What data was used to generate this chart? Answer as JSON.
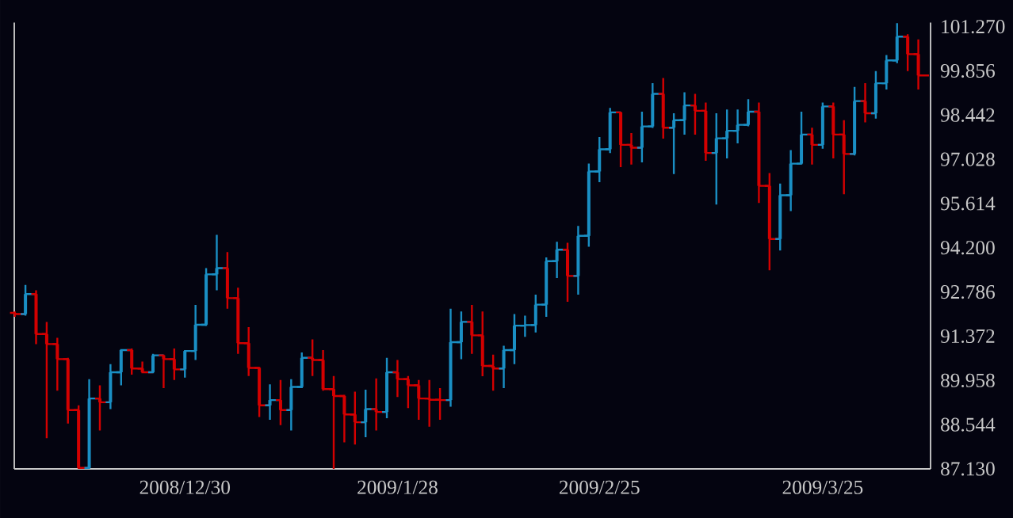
{
  "chart_data": {
    "type": "candlestick",
    "categories": [
      null,
      null,
      null,
      null,
      null,
      null,
      null,
      null,
      null,
      null,
      null,
      null,
      null,
      null,
      null,
      null,
      "2008/12/30",
      null,
      null,
      null,
      null,
      null,
      null,
      null,
      null,
      null,
      null,
      null,
      null,
      null,
      null,
      null,
      null,
      null,
      null,
      null,
      "2009/1/28",
      null,
      null,
      null,
      null,
      null,
      null,
      null,
      null,
      null,
      null,
      null,
      null,
      null,
      null,
      null,
      null,
      null,
      null,
      "2009/2/25",
      null,
      null,
      null,
      null,
      null,
      null,
      null,
      null,
      null,
      null,
      null,
      null,
      null,
      null,
      null,
      null,
      null,
      null,
      null,
      null,
      "2009/3/25",
      null,
      null,
      null,
      null,
      null,
      null,
      null,
      null,
      null
    ],
    "ohlc": [
      [
        92.12,
        92.16,
        91.99,
        92.08
      ],
      [
        92.08,
        93.01,
        92.03,
        92.72
      ],
      [
        92.72,
        92.84,
        91.12,
        91.44
      ],
      [
        91.44,
        91.83,
        88.11,
        91.12
      ],
      [
        91.12,
        91.32,
        89.63,
        90.64
      ],
      [
        90.64,
        90.68,
        88.58,
        89.01
      ],
      [
        89.01,
        89.16,
        87.13,
        87.16
      ],
      [
        87.16,
        90.0,
        87.13,
        89.38
      ],
      [
        89.38,
        89.8,
        88.36,
        89.26
      ],
      [
        89.26,
        90.48,
        89.04,
        90.22
      ],
      [
        90.22,
        90.95,
        89.8,
        90.93
      ],
      [
        90.93,
        90.98,
        90.14,
        90.34
      ],
      [
        90.34,
        90.56,
        90.22,
        90.22
      ],
      [
        90.22,
        90.81,
        90.22,
        90.76
      ],
      [
        90.76,
        90.78,
        89.71,
        90.64
      ],
      [
        90.64,
        90.98,
        89.97,
        90.31
      ],
      [
        90.31,
        90.9,
        90.05,
        90.9
      ],
      [
        90.9,
        92.37,
        90.61,
        91.74
      ],
      [
        91.74,
        93.55,
        91.7,
        93.35
      ],
      [
        93.35,
        94.61,
        92.84,
        93.55
      ],
      [
        93.55,
        94.06,
        92.25,
        92.59
      ],
      [
        92.59,
        92.92,
        90.81,
        91.15
      ],
      [
        91.15,
        91.66,
        90.1,
        90.36
      ],
      [
        90.36,
        90.36,
        88.79,
        89.16
      ],
      [
        89.16,
        89.83,
        88.7,
        89.33
      ],
      [
        89.33,
        89.97,
        88.53,
        89.01
      ],
      [
        89.01,
        90.0,
        88.36,
        89.75
      ],
      [
        89.75,
        90.85,
        89.71,
        90.68
      ],
      [
        90.68,
        91.27,
        90.1,
        90.61
      ],
      [
        90.61,
        90.93,
        89.63,
        89.68
      ],
      [
        89.68,
        90.1,
        87.13,
        89.46
      ],
      [
        89.46,
        89.5,
        87.98,
        88.87
      ],
      [
        88.87,
        89.6,
        87.91,
        88.62
      ],
      [
        88.62,
        89.66,
        88.14,
        89.04
      ],
      [
        89.04,
        90.02,
        88.36,
        88.95
      ],
      [
        88.95,
        90.68,
        88.75,
        90.22
      ],
      [
        90.22,
        90.61,
        89.43,
        90.0
      ],
      [
        90.0,
        90.1,
        89.07,
        89.8
      ],
      [
        89.8,
        89.97,
        88.7,
        89.38
      ],
      [
        89.38,
        89.97,
        88.48,
        89.34
      ],
      [
        89.34,
        89.71,
        88.7,
        89.33
      ],
      [
        89.33,
        92.25,
        89.12,
        91.18
      ],
      [
        91.18,
        92.16,
        90.64,
        91.83
      ],
      [
        91.83,
        92.37,
        90.81,
        91.4
      ],
      [
        91.4,
        92.16,
        90.09,
        90.42
      ],
      [
        90.42,
        90.78,
        89.63,
        90.34
      ],
      [
        90.34,
        91.07,
        89.71,
        90.93
      ],
      [
        90.93,
        92.08,
        90.48,
        91.71
      ],
      [
        91.71,
        92.03,
        91.35,
        91.73
      ],
      [
        91.73,
        92.7,
        91.49,
        92.38
      ],
      [
        92.38,
        93.89,
        91.99,
        93.77
      ],
      [
        93.77,
        94.39,
        93.23,
        94.14
      ],
      [
        94.14,
        94.36,
        92.47,
        93.3
      ],
      [
        93.3,
        94.9,
        92.7,
        94.58
      ],
      [
        94.58,
        96.89,
        94.23,
        96.64
      ],
      [
        96.64,
        97.74,
        96.3,
        97.35
      ],
      [
        97.35,
        98.67,
        97.23,
        98.53
      ],
      [
        98.53,
        98.55,
        96.78,
        97.49
      ],
      [
        97.49,
        97.87,
        96.86,
        97.4
      ],
      [
        97.4,
        98.55,
        96.93,
        98.08
      ],
      [
        98.08,
        99.46,
        98.03,
        99.12
      ],
      [
        99.12,
        99.63,
        97.69,
        98.04
      ],
      [
        98.04,
        98.5,
        96.56,
        98.28
      ],
      [
        98.28,
        99.17,
        97.82,
        98.75
      ],
      [
        98.75,
        99.12,
        97.82,
        98.58
      ],
      [
        98.58,
        98.84,
        96.98,
        97.23
      ],
      [
        97.23,
        98.5,
        95.58,
        97.7
      ],
      [
        97.7,
        98.62,
        97.06,
        97.94
      ],
      [
        97.94,
        98.62,
        97.54,
        98.13
      ],
      [
        98.13,
        98.95,
        98.08,
        98.55
      ],
      [
        98.55,
        98.84,
        95.63,
        96.18
      ],
      [
        96.18,
        96.59,
        93.48,
        94.48
      ],
      [
        94.48,
        96.25,
        94.11,
        95.88
      ],
      [
        95.88,
        97.32,
        95.37,
        96.89
      ],
      [
        96.89,
        98.55,
        96.86,
        97.82
      ],
      [
        97.82,
        98.04,
        96.86,
        97.49
      ],
      [
        97.49,
        98.84,
        97.37,
        98.72
      ],
      [
        98.72,
        98.84,
        97.06,
        97.82
      ],
      [
        97.82,
        98.28,
        95.91,
        97.2
      ],
      [
        97.2,
        99.34,
        97.15,
        98.89
      ],
      [
        98.89,
        99.46,
        98.21,
        98.5
      ],
      [
        98.5,
        99.85,
        98.33,
        99.46
      ],
      [
        99.46,
        100.36,
        99.26,
        100.19
      ],
      [
        100.19,
        101.38,
        100.1,
        100.95
      ],
      [
        100.95,
        101.03,
        99.85,
        100.39
      ],
      [
        100.39,
        100.86,
        99.26,
        99.71
      ]
    ],
    "colors": [
      "#d40000",
      "#1a8fc4",
      "#d40000",
      "#d40000",
      "#d40000",
      "#d40000",
      "#d40000",
      "#1a8fc4",
      "#d40000",
      "#1a8fc4",
      "#1a8fc4",
      "#d40000",
      "#d40000",
      "#1a8fc4",
      "#d40000",
      "#d40000",
      "#1a8fc4",
      "#1a8fc4",
      "#1a8fc4",
      "#1a8fc4",
      "#d40000",
      "#d40000",
      "#d40000",
      "#d40000",
      "#1a8fc4",
      "#d40000",
      "#1a8fc4",
      "#1a8fc4",
      "#d40000",
      "#d40000",
      "#d40000",
      "#d40000",
      "#d40000",
      "#1a8fc4",
      "#d40000",
      "#1a8fc4",
      "#d40000",
      "#d40000",
      "#d40000",
      "#d40000",
      "#d40000",
      "#1a8fc4",
      "#1a8fc4",
      "#d40000",
      "#d40000",
      "#d40000",
      "#1a8fc4",
      "#1a8fc4",
      "#1a8fc4",
      "#1a8fc4",
      "#1a8fc4",
      "#1a8fc4",
      "#d40000",
      "#1a8fc4",
      "#1a8fc4",
      "#1a8fc4",
      "#1a8fc4",
      "#d40000",
      "#d40000",
      "#1a8fc4",
      "#1a8fc4",
      "#d40000",
      "#1a8fc4",
      "#1a8fc4",
      "#d40000",
      "#d40000",
      "#1a8fc4",
      "#1a8fc4",
      "#1a8fc4",
      "#1a8fc4",
      "#d40000",
      "#d40000",
      "#1a8fc4",
      "#1a8fc4",
      "#1a8fc4",
      "#d40000",
      "#1a8fc4",
      "#d40000",
      "#d40000",
      "#1a8fc4",
      "#d40000",
      "#1a8fc4",
      "#1a8fc4",
      "#1a8fc4",
      "#d40000",
      "#d40000"
    ],
    "ylim": [
      87.13,
      101.4
    ],
    "yticks": [
      {
        "value": 87.13,
        "label": "87.130"
      },
      {
        "value": 88.544,
        "label": "88.544"
      },
      {
        "value": 89.958,
        "label": "89.958"
      },
      {
        "value": 91.372,
        "label": "91.372"
      },
      {
        "value": 92.786,
        "label": "92.786"
      },
      {
        "value": 94.2,
        "label": "94.200"
      },
      {
        "value": 95.614,
        "label": "95.614"
      },
      {
        "value": 97.028,
        "label": "97.028"
      },
      {
        "value": 98.442,
        "label": "98.442"
      },
      {
        "value": 99.856,
        "label": "99.856"
      },
      {
        "value": 101.27,
        "label": "101.270"
      }
    ]
  }
}
